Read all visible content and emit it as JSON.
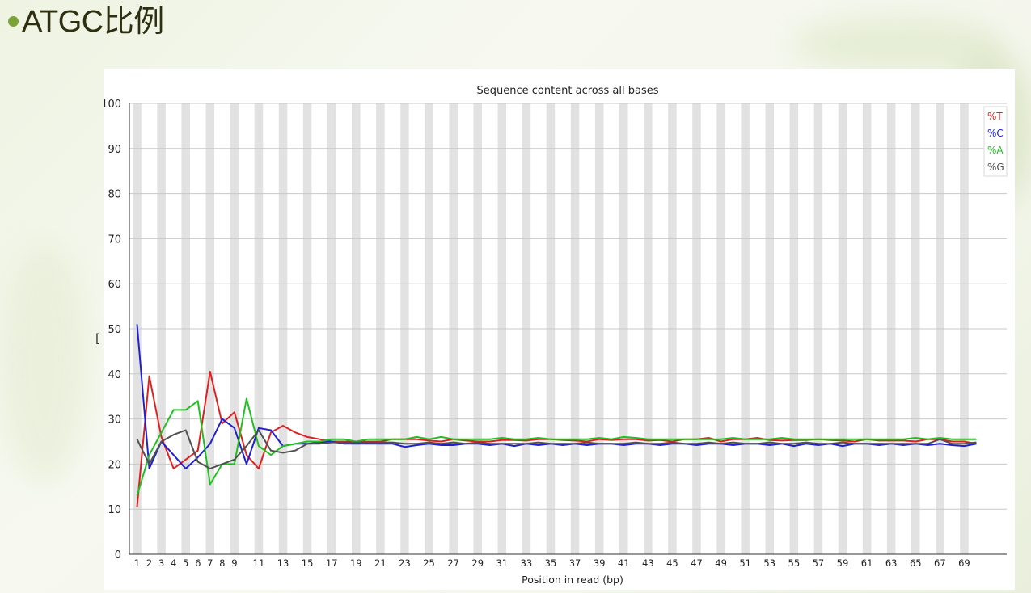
{
  "slide": {
    "bullet_color": "#7da338",
    "title": "ATGC比例",
    "side_mark": "[ ;"
  },
  "chart_data": {
    "type": "line",
    "title": "Sequence content across all bases",
    "xlabel": "Position in read (bp)",
    "ylabel": "",
    "ylim": [
      0,
      100
    ],
    "yticks": [
      0,
      10,
      20,
      30,
      40,
      50,
      60,
      70,
      80,
      90,
      100
    ],
    "x": [
      1,
      2,
      3,
      4,
      5,
      6,
      7,
      8,
      9,
      10,
      11,
      12,
      13,
      14,
      15,
      16,
      17,
      18,
      19,
      20,
      21,
      22,
      23,
      24,
      25,
      26,
      27,
      28,
      29,
      30,
      31,
      32,
      33,
      34,
      35,
      36,
      37,
      38,
      39,
      40,
      41,
      42,
      43,
      44,
      45,
      46,
      47,
      48,
      49,
      50,
      51,
      52,
      53,
      54,
      55,
      56,
      57,
      58,
      59,
      60,
      61,
      62,
      63,
      64,
      65,
      66,
      67,
      68,
      69,
      70
    ],
    "xtick_labels": [
      "1",
      "2",
      "3",
      "4",
      "5",
      "6",
      "7",
      "8",
      "9",
      "11",
      "13",
      "15",
      "17",
      "19",
      "21",
      "23",
      "25",
      "27",
      "29",
      "31",
      "33",
      "35",
      "37",
      "39",
      "41",
      "43",
      "45",
      "47",
      "49",
      "51",
      "53",
      "55",
      "57",
      "59",
      "61",
      "63",
      "65",
      "67",
      "69"
    ],
    "grid": true,
    "legend_position": "top-right",
    "series": [
      {
        "name": "%T",
        "color": "#e02020",
        "values": [
          10.5,
          39.5,
          26,
          19,
          21,
          23,
          40.5,
          29,
          31.5,
          22,
          19,
          27,
          28.5,
          27,
          26,
          25.5,
          25,
          25,
          25,
          25,
          25,
          25.5,
          25.5,
          25.5,
          25.2,
          25,
          25.5,
          25.2,
          25,
          25,
          25.3,
          25.3,
          25.2,
          25.5,
          25.5,
          25.3,
          25.2,
          25,
          25.5,
          25.3,
          25.5,
          25.5,
          25.2,
          25.3,
          25,
          25.5,
          25.5,
          25.8,
          25,
          25.5,
          25.5,
          25.8,
          25.3,
          25.2,
          25.3,
          25.3,
          25.5,
          25.3,
          25.2,
          25,
          25.5,
          25.2,
          25.2,
          25.2,
          25,
          25.5,
          25.5,
          25,
          25,
          24.5
        ]
      },
      {
        "name": "%C",
        "color": "#2020d0",
        "values": [
          51,
          19,
          25,
          22,
          19,
          21.5,
          24.5,
          30,
          28,
          20,
          28,
          27.5,
          24,
          24.5,
          24.5,
          24.8,
          25,
          24.5,
          24.5,
          24.5,
          24.5,
          24.5,
          23.8,
          24.2,
          24.5,
          24.2,
          24.2,
          24.5,
          24.5,
          24.2,
          24.5,
          24,
          24.5,
          24.2,
          24.5,
          24.2,
          24.5,
          24.2,
          24.5,
          24.5,
          24.2,
          24.5,
          24.5,
          24.2,
          24.5,
          24.5,
          24.2,
          24.5,
          24.5,
          24.2,
          24.5,
          24.5,
          24.2,
          24.5,
          24,
          24.5,
          24.2,
          24.5,
          24,
          24.5,
          24.5,
          24.2,
          24.5,
          24.2,
          24.5,
          24.2,
          24.5,
          24.2,
          24,
          24.5
        ]
      },
      {
        "name": "%A",
        "color": "#20c020",
        "values": [
          13,
          22,
          27,
          32,
          32,
          34,
          15.5,
          20,
          20,
          34.5,
          24,
          22,
          24,
          24.5,
          25,
          25,
          25.5,
          25.5,
          25,
          25.5,
          25.5,
          25.5,
          25.5,
          26,
          25.5,
          26,
          25.5,
          25.5,
          25.5,
          25.5,
          25.8,
          25.5,
          25.5,
          25.8,
          25.5,
          25.5,
          25.5,
          25.5,
          25.8,
          25.5,
          26,
          25.8,
          25.5,
          25.5,
          25.5,
          25.5,
          25.5,
          25.5,
          25.5,
          25.8,
          25.5,
          25.5,
          25.5,
          25.8,
          25.5,
          25.5,
          25.5,
          25.5,
          25.5,
          25.5,
          25.5,
          25.5,
          25.5,
          25.5,
          25.8,
          25.5,
          25.8,
          25.5,
          25.5,
          25.5
        ]
      },
      {
        "name": "%G",
        "color": "#505050",
        "values": [
          25.5,
          20,
          25,
          26.5,
          27.5,
          20.5,
          19,
          20,
          21,
          24,
          27.5,
          23,
          22.5,
          23,
          24.5,
          24.5,
          24.8,
          24.8,
          24.8,
          24.8,
          24.8,
          24.8,
          24.5,
          24.5,
          24.8,
          24.5,
          24.8,
          24.5,
          24.8,
          24.5,
          24.5,
          24.5,
          24.5,
          24.8,
          24.5,
          24.5,
          24.5,
          24.8,
          24.5,
          24.5,
          24.5,
          24.8,
          24.5,
          24.5,
          24.8,
          24.5,
          24.5,
          24.8,
          24.5,
          24.8,
          24.5,
          24.5,
          24.8,
          24.5,
          24.5,
          24.8,
          24.5,
          24.5,
          24.8,
          24.5,
          24.5,
          24.5,
          24.5,
          24.5,
          24.5,
          24.5,
          25.5,
          24.5,
          24.5,
          24.8
        ]
      }
    ],
    "band_colors": {
      "shade": "#e2e2e2",
      "light": "#ffffff"
    },
    "gridline_color": "#c8c8c8"
  }
}
